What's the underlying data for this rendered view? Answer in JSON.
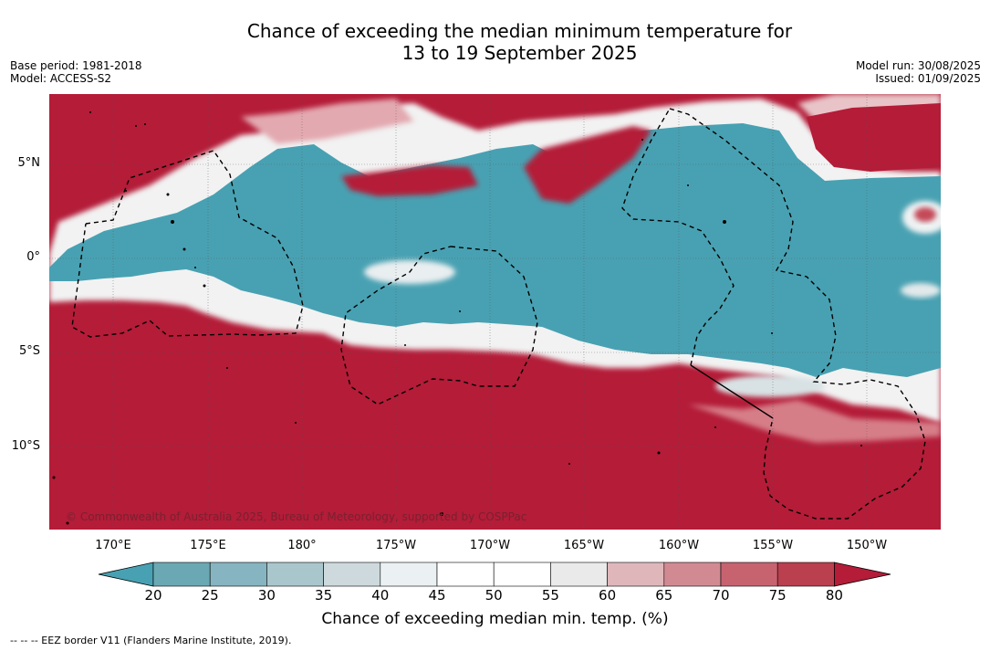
{
  "header": {
    "title_line1": "Chance of exceeding the median minimum temperature for",
    "title_line2": "13 to 19 September 2025",
    "base_period": "Base period: 1981-2018",
    "model": "Model: ACCESS-S2",
    "model_run": "Model run: 30/08/2025",
    "issued": "Issued: 01/09/2025"
  },
  "map": {
    "lat_labels": [
      "5°N",
      "0°",
      "5°S",
      "10°S"
    ],
    "lon_labels": [
      "170°E",
      "175°E",
      "180°",
      "175°W",
      "170°W",
      "165°W",
      "160°W",
      "155°W",
      "150°W"
    ],
    "copyright": "© Commonwealth of Australia 2025, Bureau of Meteorology, supported by COSPPac",
    "colors": {
      "below": "#48a1b2",
      "above": "#b41c38",
      "near": "#ffffff"
    }
  },
  "colorbar": {
    "ticks": [
      "20",
      "25",
      "30",
      "35",
      "40",
      "45",
      "50",
      "55",
      "60",
      "65",
      "70",
      "75",
      "80"
    ],
    "colors": [
      "#6aa9b4",
      "#86b5c1",
      "#a9c6cc",
      "#cdd9dc",
      "#ebf0f2",
      "#ffffff",
      "#ffffff",
      "#eaeaeb",
      "#dfb7bb",
      "#d28a92",
      "#c7636f",
      "#ba3f4f"
    ],
    "low_color": "#48a1b2",
    "high_color": "#b41c38",
    "label": "Chance of exceeding median min. temp. (%)"
  },
  "footer": {
    "legend": "--  --  -- EEZ border V11 (Flanders Marine Institute, 2019)."
  }
}
